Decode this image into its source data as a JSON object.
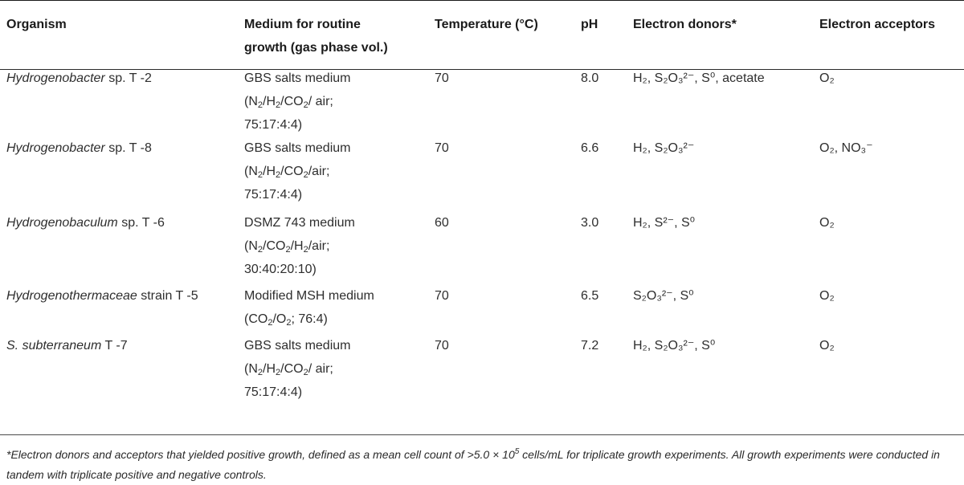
{
  "headers": {
    "organism": "Organism",
    "medium_line1": "Medium for routine",
    "medium_line2": "growth (gas phase vol.)",
    "temperature": "Temperature (°C)",
    "ph": "pH",
    "donors": "Electron donors*",
    "acceptors": "Electron acceptors"
  },
  "rows": [
    {
      "genus": "Hydrogenobacter",
      "strain": " sp. T -2",
      "medium": "GBS salts medium",
      "gas": [
        "(N",
        "2",
        "/H",
        "2",
        "/CO",
        "2",
        "/ air;"
      ],
      "ratio": "75:17:4:4)",
      "temp": "70",
      "ph": "8.0",
      "donors": "H₂, S₂O₃²⁻, S⁰, acetate",
      "acceptors": "O₂"
    },
    {
      "genus": "Hydrogenobacter",
      "strain": " sp. T -8",
      "medium": "GBS salts medium",
      "gas": [
        "(N",
        "2",
        "/H",
        "2",
        "/CO",
        "2",
        "/air;"
      ],
      "ratio": "75:17:4:4)",
      "temp": "70",
      "ph": "6.6",
      "donors": "H₂, S₂O₃²⁻",
      "acceptors": "O₂, NO₃⁻"
    },
    {
      "genus": "Hydrogenobaculum",
      "strain": " sp. T -6",
      "medium": "DSMZ 743 medium",
      "gas": [
        "(N",
        "2",
        "/CO",
        "2",
        "/H",
        "2",
        "/air;"
      ],
      "ratio": "30:40:20:10)",
      "temp": "60",
      "ph": "3.0",
      "donors": "H₂, S²⁻, S⁰",
      "acceptors": "O₂"
    },
    {
      "genus": "Hydrogenothermaceae",
      "strain": " strain T -5",
      "medium": "Modified MSH medium",
      "gas": [
        "(CO",
        "2",
        "/O",
        "2",
        "; 76:4)",
        "",
        "",
        ""
      ],
      "ratio": "",
      "temp": "70",
      "ph": "6.5",
      "donors": "S₂O₃²⁻, S⁰",
      "acceptors": "O₂"
    },
    {
      "genus": "S. subterraneum",
      "strain": " T -7",
      "medium": "GBS salts medium",
      "gas": [
        "(N",
        "2",
        "/H",
        "2",
        "/CO",
        "2",
        "/ air;"
      ],
      "ratio": "75:17:4:4)",
      "temp": "70",
      "ph": "7.2",
      "donors": "H₂, S₂O₃²⁻, S⁰",
      "acceptors": "O₂"
    }
  ],
  "footnote": {
    "part1": "*Electron donors and acceptors that yielded positive growth, defined as a mean cell count of >5.0 × 10",
    "exp": "5",
    "part2": " cells/mL for triplicate growth experiments. All growth experiments were conducted in tandem with triplicate positive and negative controls."
  }
}
